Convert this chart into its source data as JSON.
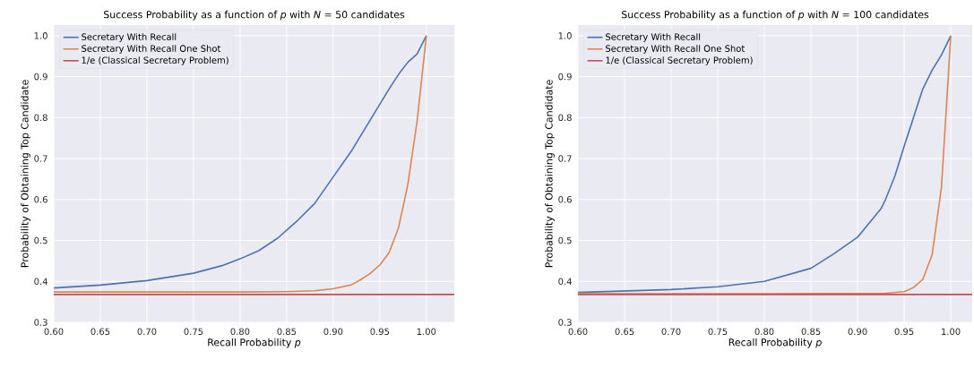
{
  "chart_data": [
    {
      "type": "line",
      "title": "Success Probability as a function of *p* with *N* =  50 candidates",
      "xlabel": "Recall Probability *p*",
      "ylabel": "Probability of Obtaining Top Candidate",
      "xlim": [
        0.6,
        1.03
      ],
      "ylim": [
        0.3,
        1.026
      ],
      "xticks": [
        {
          "value": 0.6,
          "label": "0.60"
        },
        {
          "value": 0.65,
          "label": "0.65"
        },
        {
          "value": 0.7,
          "label": "0.70"
        },
        {
          "value": 0.75,
          "label": "0.75"
        },
        {
          "value": 0.8,
          "label": "0.80"
        },
        {
          "value": 0.85,
          "label": "0.85"
        },
        {
          "value": 0.9,
          "label": "0.90"
        },
        {
          "value": 0.95,
          "label": "0.95"
        },
        {
          "value": 1.0,
          "label": "1.00"
        }
      ],
      "yticks": [
        0.3,
        0.4,
        0.5,
        0.6,
        0.7,
        0.8,
        0.9,
        {
          "value": 1.0,
          "label": "1.0"
        }
      ],
      "grid": true,
      "legend": "top left",
      "series": [
        {
          "name": "Secretary With Recall",
          "color": "#4c72b0",
          "x": [
            0.6,
            0.65,
            0.7,
            0.75,
            0.78,
            0.8,
            0.82,
            0.84,
            0.86,
            0.88,
            0.9,
            0.92,
            0.94,
            0.96,
            0.97,
            0.98,
            0.99,
            1.0
          ],
          "values": [
            0.384,
            0.391,
            0.402,
            0.42,
            0.438,
            0.455,
            0.475,
            0.505,
            0.545,
            0.59,
            0.655,
            0.72,
            0.795,
            0.87,
            0.905,
            0.935,
            0.955,
            1.0
          ]
        },
        {
          "name": "Secretary With Recall One Shot",
          "color": "#dd8452",
          "x": [
            0.6,
            0.7,
            0.8,
            0.85,
            0.88,
            0.9,
            0.92,
            0.93,
            0.94,
            0.95,
            0.96,
            0.97,
            0.98,
            0.99,
            1.0
          ],
          "values": [
            0.374,
            0.374,
            0.374,
            0.375,
            0.377,
            0.382,
            0.392,
            0.405,
            0.42,
            0.44,
            0.47,
            0.53,
            0.635,
            0.79,
            1.0
          ]
        },
        {
          "name": "1/e (Classical Secretary Problem)",
          "color": "#c44e52",
          "x": [
            0.6,
            1.03
          ],
          "values": [
            0.368,
            0.368
          ]
        }
      ]
    },
    {
      "type": "line",
      "title": "Success Probability as a function of *p* with *N* =  100 candidates",
      "xlabel": "Recall Probability *p*",
      "ylabel": "Probability of Obtaining Top Candidate",
      "xlim": [
        0.6,
        1.023
      ],
      "ylim": [
        0.3,
        1.026
      ],
      "xticks": [
        {
          "value": 0.6,
          "label": "0.60"
        },
        {
          "value": 0.65,
          "label": "0.65"
        },
        {
          "value": 0.7,
          "label": "0.70"
        },
        {
          "value": 0.75,
          "label": "0.75"
        },
        {
          "value": 0.8,
          "label": "0.80"
        },
        {
          "value": 0.85,
          "label": "0.85"
        },
        {
          "value": 0.9,
          "label": "0.90"
        },
        {
          "value": 0.95,
          "label": "0.95"
        },
        {
          "value": 1.0,
          "label": "1.00"
        }
      ],
      "yticks": [
        0.3,
        0.4,
        0.5,
        0.6,
        0.7,
        0.8,
        0.9,
        {
          "value": 1.0,
          "label": "1.0"
        }
      ],
      "grid": true,
      "legend": "top left",
      "series": [
        {
          "name": "Secretary With Recall",
          "color": "#4c72b0",
          "x": [
            0.6,
            0.7,
            0.75,
            0.8,
            0.85,
            0.875,
            0.9,
            0.925,
            0.93,
            0.94,
            0.95,
            0.96,
            0.97,
            0.98,
            0.99,
            1.0
          ],
          "values": [
            0.373,
            0.38,
            0.387,
            0.4,
            0.432,
            0.468,
            0.508,
            0.577,
            0.6,
            0.657,
            0.73,
            0.8,
            0.87,
            0.916,
            0.953,
            1.0
          ]
        },
        {
          "name": "Secretary With Recall One Shot",
          "color": "#dd8452",
          "x": [
            0.6,
            0.8,
            0.93,
            0.95,
            0.96,
            0.97,
            0.98,
            0.99,
            1.0
          ],
          "values": [
            0.37,
            0.37,
            0.371,
            0.375,
            0.385,
            0.405,
            0.465,
            0.63,
            1.0
          ]
        },
        {
          "name": "1/e (Classical Secretary Problem)",
          "color": "#c44e52",
          "x": [
            0.6,
            1.023
          ],
          "values": [
            0.368,
            0.368
          ]
        }
      ]
    }
  ]
}
